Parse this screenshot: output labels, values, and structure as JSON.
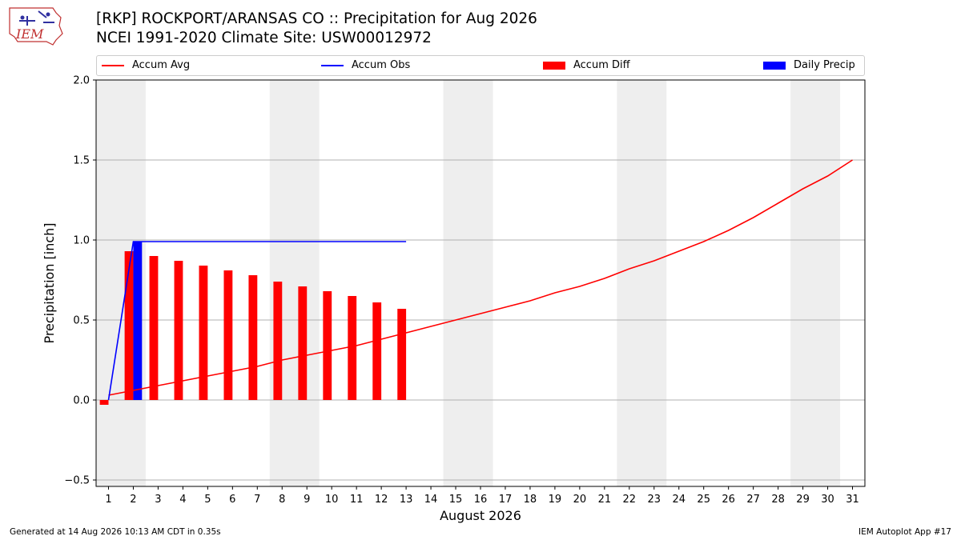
{
  "header": {
    "logo_text": "IEM",
    "title_line1": "[RKP] ROCKPORT/ARANSAS CO :: Precipitation for Aug 2026",
    "title_line2": "NCEI 1991-2020 Climate Site: USW00012972"
  },
  "legend": {
    "placement": "top",
    "items": [
      {
        "label": "Accum Avg",
        "kind": "line",
        "color": "#ff0000"
      },
      {
        "label": "Accum Obs",
        "kind": "line",
        "color": "#0000ff"
      },
      {
        "label": "Accum Diff",
        "kind": "box",
        "color": "#ff0000"
      },
      {
        "label": "Daily Precip",
        "kind": "box",
        "color": "#0000ff"
      }
    ]
  },
  "footer": {
    "left": "Generated at 14 Aug 2026 10:13 AM CDT in 0.35s",
    "right": "IEM Autoplot App #17"
  },
  "chart_data": {
    "type": "bar",
    "title": "",
    "xlabel": "August 2026",
    "ylabel": "Precipitation [inch]",
    "xlim": [
      0.5,
      31.5
    ],
    "ylim": [
      -0.54,
      2.0
    ],
    "yticks": [
      -0.5,
      0.0,
      0.5,
      1.0,
      1.5,
      2.0
    ],
    "ytick_labels": [
      "−0.5",
      "0.0",
      "0.5",
      "1.0",
      "1.5",
      "2.0"
    ],
    "categories": [
      1,
      2,
      3,
      4,
      5,
      6,
      7,
      8,
      9,
      10,
      11,
      12,
      13,
      14,
      15,
      16,
      17,
      18,
      19,
      20,
      21,
      22,
      23,
      24,
      25,
      26,
      27,
      28,
      29,
      30,
      31
    ],
    "grid": "horizontal",
    "weekend_shading": [
      [
        0.5,
        2.5
      ],
      [
        7.5,
        9.5
      ],
      [
        14.5,
        16.5
      ],
      [
        21.5,
        23.5
      ],
      [
        28.5,
        30.5
      ]
    ],
    "shade_color": "#eeeeee",
    "series": [
      {
        "name": "Accum Avg",
        "kind": "line",
        "color": "#ff0000",
        "x": [
          1,
          2,
          3,
          4,
          5,
          6,
          7,
          8,
          9,
          10,
          11,
          12,
          13,
          14,
          15,
          16,
          17,
          18,
          19,
          20,
          21,
          22,
          23,
          24,
          25,
          26,
          27,
          28,
          29,
          30,
          31
        ],
        "values": [
          0.03,
          0.06,
          0.09,
          0.12,
          0.15,
          0.18,
          0.21,
          0.25,
          0.28,
          0.31,
          0.34,
          0.38,
          0.42,
          0.46,
          0.5,
          0.54,
          0.58,
          0.62,
          0.67,
          0.71,
          0.76,
          0.82,
          0.87,
          0.93,
          0.99,
          1.06,
          1.14,
          1.23,
          1.32,
          1.4,
          1.5
        ]
      },
      {
        "name": "Accum Obs",
        "kind": "line",
        "color": "#0000ff",
        "x": [
          1,
          2,
          3,
          4,
          5,
          6,
          7,
          8,
          9,
          10,
          11,
          12,
          13
        ],
        "values": [
          0.0,
          0.99,
          0.99,
          0.99,
          0.99,
          0.99,
          0.99,
          0.99,
          0.99,
          0.99,
          0.99,
          0.99,
          0.99
        ]
      },
      {
        "name": "Accum Diff",
        "kind": "bar",
        "color": "#ff0000",
        "x": [
          1,
          2,
          3,
          4,
          5,
          6,
          7,
          8,
          9,
          10,
          11,
          12,
          13
        ],
        "values": [
          -0.03,
          0.93,
          0.9,
          0.87,
          0.84,
          0.81,
          0.78,
          0.74,
          0.71,
          0.68,
          0.65,
          0.61,
          0.57
        ]
      },
      {
        "name": "Daily Precip",
        "kind": "bar",
        "color": "#0000ff",
        "x": [
          2
        ],
        "values": [
          0.99
        ]
      }
    ]
  }
}
